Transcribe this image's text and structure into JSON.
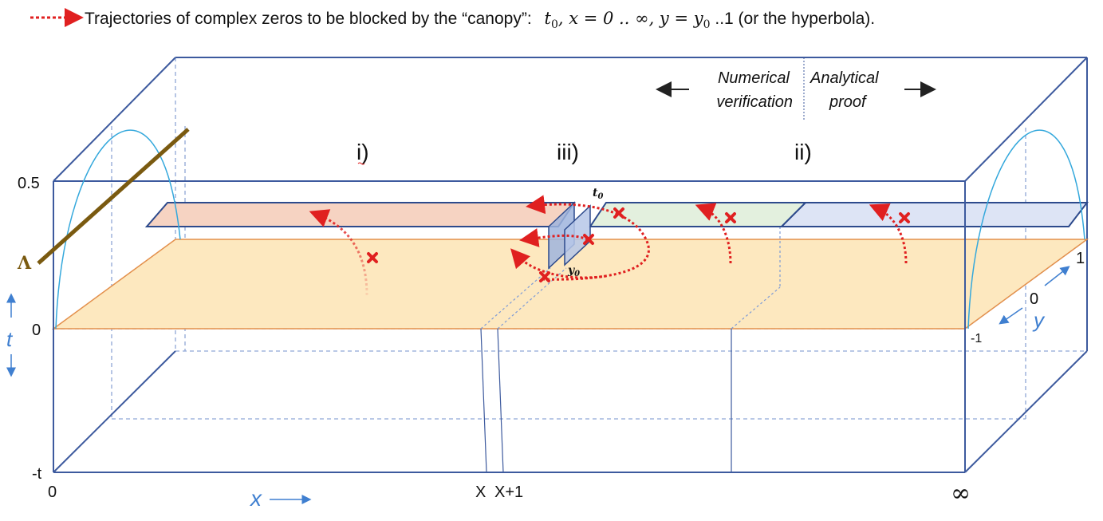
{
  "legend": {
    "text": "Trajectories of complex zeros to be blocked by the “canopy”:",
    "t0_sym": "t",
    "t0_sub": "0",
    "x_part": ", x = 0 .. ∞, y = y",
    "y_sub": "0",
    "tail": " ..1 (or the hyperbola).",
    "arrow_color": "#e02020"
  },
  "regions": {
    "left_label": "i)",
    "middle_label": "iii)",
    "right_label": "ii)"
  },
  "banner": {
    "left_line1": "Numerical",
    "left_line2": "verification",
    "right_line1": "Analytical",
    "right_line2": "proof"
  },
  "t_axis": {
    "top": "0.5",
    "zero": "0",
    "bottom": "-t",
    "symbol": "t"
  },
  "x_axis": {
    "origin": "0",
    "x_mark": "X",
    "x1_mark": "X+1",
    "infinity": "∞",
    "symbol": "x"
  },
  "y_axis": {
    "plus_one": "1",
    "zero": "0",
    "minus_one": "-1",
    "symbol": "y"
  },
  "wall_labels": {
    "t0": "t",
    "t0_sub": "0",
    "y0": "y",
    "y0_sub": "0"
  },
  "lambda_label": "Λ",
  "colors": {
    "frame": "#3d5a9e",
    "frame_dashed": "#8fa6d6",
    "axis_blue": "#3f7fd0",
    "plane_fill": "#fde8bf",
    "plane_edge": "#e3904c",
    "canopy_left": "#f6d3c2",
    "canopy_mid": "#e3f0de",
    "canopy_right": "#dde4f5",
    "canopy_edge": "#2d4a8c",
    "arc": "#34a8dc",
    "lambda_line": "#7a5a10",
    "zero_mark": "#e02020"
  }
}
